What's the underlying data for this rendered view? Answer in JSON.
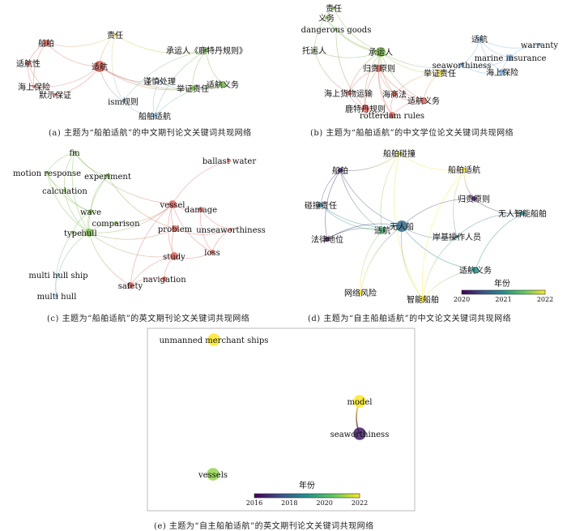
{
  "colors": {
    "red": "#e0675e",
    "green": "#78b948",
    "blue": "#7fb0da",
    "yellow": "#e6d64a"
  },
  "panels": [
    {
      "id": "a",
      "caption": "(a)  主题为“船舶适航”的中文期刊论文关键词共现网络",
      "nodes": [
        {
          "label": "船舶",
          "cluster": "red",
          "size": 4
        },
        {
          "label": "适航性",
          "cluster": "red",
          "size": 3
        },
        {
          "label": "海上保险",
          "cluster": "red",
          "size": 2
        },
        {
          "label": "默示保证",
          "cluster": "red",
          "size": 2
        },
        {
          "label": "责任",
          "cluster": "yellow",
          "size": 2
        },
        {
          "label": "适航",
          "cluster": "red",
          "size": 7
        },
        {
          "label": "承运人《鹿特丹规则》",
          "cluster": "green",
          "size": 3
        },
        {
          "label": "谨慎处理",
          "cluster": "blue",
          "size": 2
        },
        {
          "label": "举证责任",
          "cluster": "green",
          "size": 3
        },
        {
          "label": "适航义务",
          "cluster": "green",
          "size": 4
        },
        {
          "label": "ism规则",
          "cluster": "blue",
          "size": 2
        },
        {
          "label": "船舶适航",
          "cluster": "blue",
          "size": 3
        }
      ],
      "edges": [
        [
          0,
          1
        ],
        [
          0,
          2
        ],
        [
          0,
          5
        ],
        [
          1,
          2
        ],
        [
          1,
          3
        ],
        [
          2,
          5
        ],
        [
          3,
          5
        ],
        [
          4,
          5
        ],
        [
          4,
          6
        ],
        [
          4,
          10
        ],
        [
          5,
          8
        ],
        [
          5,
          9
        ],
        [
          5,
          10
        ],
        [
          5,
          7
        ],
        [
          6,
          8
        ],
        [
          6,
          9
        ],
        [
          6,
          10
        ],
        [
          7,
          11
        ],
        [
          7,
          8
        ],
        [
          8,
          9
        ],
        [
          9,
          11
        ],
        [
          10,
          11
        ],
        [
          6,
          11
        ],
        [
          0,
          4
        ]
      ]
    },
    {
      "id": "b",
      "caption": "(b)  主题为“船舶适航”的中文学位论文关键词共现网络",
      "nodes": [
        {
          "label": "责任",
          "cluster": "green",
          "size": 2
        },
        {
          "label": "义务",
          "cluster": "green",
          "size": 2
        },
        {
          "label": "dangerous goods",
          "cluster": "green",
          "size": 2
        },
        {
          "label": "托运人",
          "cluster": "green",
          "size": 2
        },
        {
          "label": "承运人",
          "cluster": "green",
          "size": 6
        },
        {
          "label": "归责原则",
          "cluster": "red",
          "size": 4
        },
        {
          "label": "seaworthiness",
          "cluster": "blue",
          "size": 3
        },
        {
          "label": "举证责任",
          "cluster": "yellow",
          "size": 4
        },
        {
          "label": "适航",
          "cluster": "blue",
          "size": 3
        },
        {
          "label": "warranty",
          "cluster": "blue",
          "size": 2
        },
        {
          "label": "marine insurance",
          "cluster": "blue",
          "size": 4
        },
        {
          "label": "海上保险",
          "cluster": "blue",
          "size": 4
        },
        {
          "label": "海上货物运输",
          "cluster": "red",
          "size": 3
        },
        {
          "label": "海商法",
          "cluster": "red",
          "size": 3
        },
        {
          "label": "适航义务",
          "cluster": "red",
          "size": 4
        },
        {
          "label": "鹿特丹规则",
          "cluster": "red",
          "size": 5
        },
        {
          "label": "rotterdam rules",
          "cluster": "red",
          "size": 4
        }
      ],
      "edges": [
        [
          0,
          4
        ],
        [
          1,
          4
        ],
        [
          2,
          4
        ],
        [
          3,
          4
        ],
        [
          0,
          1
        ],
        [
          1,
          2
        ],
        [
          0,
          3
        ],
        [
          4,
          5
        ],
        [
          4,
          7
        ],
        [
          4,
          12
        ],
        [
          4,
          13
        ],
        [
          4,
          14
        ],
        [
          4,
          15
        ],
        [
          4,
          16
        ],
        [
          5,
          12
        ],
        [
          5,
          13
        ],
        [
          5,
          14
        ],
        [
          5,
          15
        ],
        [
          5,
          16
        ],
        [
          12,
          15
        ],
        [
          13,
          14
        ],
        [
          13,
          16
        ],
        [
          14,
          16
        ],
        [
          15,
          16
        ],
        [
          7,
          14
        ],
        [
          7,
          6
        ],
        [
          6,
          8
        ],
        [
          6,
          10
        ],
        [
          6,
          11
        ],
        [
          8,
          10
        ],
        [
          8,
          9
        ],
        [
          9,
          10
        ],
        [
          10,
          11
        ],
        [
          8,
          11
        ],
        [
          4,
          6
        ],
        [
          3,
          12
        ],
        [
          7,
          13
        ],
        [
          2,
          15
        ]
      ]
    },
    {
      "id": "c",
      "caption": "(c)  主题为“船舶适航”的英文期刊论文关键词共现网络",
      "nodes": [
        {
          "label": "fin",
          "cluster": "green",
          "size": 2
        },
        {
          "label": "motion response",
          "cluster": "green",
          "size": 2
        },
        {
          "label": "experiment",
          "cluster": "green",
          "size": 3
        },
        {
          "label": "calculation",
          "cluster": "green",
          "size": 2
        },
        {
          "label": "wave",
          "cluster": "green",
          "size": 3
        },
        {
          "label": "comparison",
          "cluster": "green",
          "size": 2
        },
        {
          "label": "type",
          "cluster": "green",
          "size": 2
        },
        {
          "label": "hull",
          "cluster": "green",
          "size": 5
        },
        {
          "label": "multi hull ship",
          "cluster": "blue",
          "size": 2
        },
        {
          "label": "multi hull",
          "cluster": "blue",
          "size": 2
        },
        {
          "label": "ballast water",
          "cluster": "red",
          "size": 2
        },
        {
          "label": "vessel",
          "cluster": "red",
          "size": 5
        },
        {
          "label": "damage",
          "cluster": "red",
          "size": 3
        },
        {
          "label": "problem",
          "cluster": "red",
          "size": 4
        },
        {
          "label": "unseaworthiness",
          "cluster": "red",
          "size": 2
        },
        {
          "label": "study",
          "cluster": "red",
          "size": 5
        },
        {
          "label": "loss",
          "cluster": "red",
          "size": 3
        },
        {
          "label": "navigation",
          "cluster": "red",
          "size": 3
        },
        {
          "label": "safety",
          "cluster": "red",
          "size": 4
        }
      ],
      "edges": [
        [
          0,
          1
        ],
        [
          0,
          3
        ],
        [
          0,
          7
        ],
        [
          0,
          2
        ],
        [
          1,
          3
        ],
        [
          1,
          7
        ],
        [
          1,
          4
        ],
        [
          2,
          4
        ],
        [
          2,
          7
        ],
        [
          3,
          7
        ],
        [
          3,
          4
        ],
        [
          4,
          7
        ],
        [
          5,
          7
        ],
        [
          6,
          7
        ],
        [
          4,
          6
        ],
        [
          7,
          8
        ],
        [
          8,
          9
        ],
        [
          6,
          9
        ],
        [
          7,
          11
        ],
        [
          7,
          13
        ],
        [
          7,
          15
        ],
        [
          7,
          18
        ],
        [
          10,
          11
        ],
        [
          11,
          12
        ],
        [
          11,
          13
        ],
        [
          11,
          15
        ],
        [
          11,
          16
        ],
        [
          12,
          14
        ],
        [
          12,
          16
        ],
        [
          13,
          15
        ],
        [
          13,
          14
        ],
        [
          14,
          16
        ],
        [
          15,
          16
        ],
        [
          15,
          17
        ],
        [
          15,
          18
        ],
        [
          17,
          18
        ],
        [
          11,
          18
        ],
        [
          5,
          11
        ],
        [
          0,
          11
        ],
        [
          2,
          13
        ]
      ]
    },
    {
      "id": "d",
      "caption": "(d)  主题为“自主船舶适航”的中文论文关键词共现网络",
      "colorbar": {
        "title": "年份",
        "ticks": [
          "2020",
          "2021",
          "2022"
        ],
        "range": [
          2020,
          2022
        ]
      },
      "nodes": [
        {
          "label": "船舶碰撞",
          "year": 2021.9,
          "size": 3
        },
        {
          "label": "船舶",
          "year": 2020.2,
          "size": 3
        },
        {
          "label": "船舶适航",
          "year": 2022,
          "size": 3
        },
        {
          "label": "碰撞责任",
          "year": 2020.8,
          "size": 3
        },
        {
          "label": "归责原则",
          "year": 2020.1,
          "size": 3
        },
        {
          "label": "无人智能船舶",
          "year": 2020.9,
          "size": 3
        },
        {
          "label": "无人船",
          "year": 2020.7,
          "size": 7
        },
        {
          "label": "适航",
          "year": 2021.3,
          "size": 4
        },
        {
          "label": "岸基操作人员",
          "year": 2020.8,
          "size": 2
        },
        {
          "label": "法律地位",
          "year": 2020.1,
          "size": 3
        },
        {
          "label": "适航义务",
          "year": 2021.0,
          "size": 4
        },
        {
          "label": "网络风险",
          "year": 2022,
          "size": 3
        },
        {
          "label": "智能船舶",
          "year": 2022,
          "size": 4
        }
      ],
      "edges": [
        [
          1,
          6
        ],
        [
          1,
          3
        ],
        [
          1,
          9
        ],
        [
          1,
          7
        ],
        [
          1,
          0
        ],
        [
          0,
          2
        ],
        [
          0,
          7
        ],
        [
          0,
          12
        ],
        [
          2,
          4
        ],
        [
          2,
          8
        ],
        [
          2,
          12
        ],
        [
          3,
          6
        ],
        [
          3,
          7
        ],
        [
          4,
          6
        ],
        [
          4,
          5
        ],
        [
          5,
          8
        ],
        [
          5,
          10
        ],
        [
          6,
          7
        ],
        [
          6,
          8
        ],
        [
          6,
          9
        ],
        [
          6,
          10
        ],
        [
          6,
          12
        ],
        [
          7,
          9
        ],
        [
          7,
          11
        ],
        [
          6,
          11
        ],
        [
          10,
          12
        ],
        [
          8,
          12
        ]
      ]
    },
    {
      "id": "e",
      "caption": "(e)  主题为“自主船舶适航”的英文期刊论文关键词共现网络",
      "colorbar": {
        "title": "年份",
        "ticks": [
          "2016",
          "2018",
          "2020",
          "2022"
        ],
        "range": [
          2016,
          2022
        ]
      },
      "nodes": [
        {
          "label": "unmanned merchant ships",
          "year": 2022,
          "size": 6
        },
        {
          "label": "model",
          "year": 2022,
          "size": 6
        },
        {
          "label": "seaworthiness",
          "year": 2016.5,
          "size": 6
        },
        {
          "label": "vessels",
          "year": 2021,
          "size": 6
        }
      ],
      "edges": [
        [
          1,
          2
        ]
      ]
    }
  ]
}
